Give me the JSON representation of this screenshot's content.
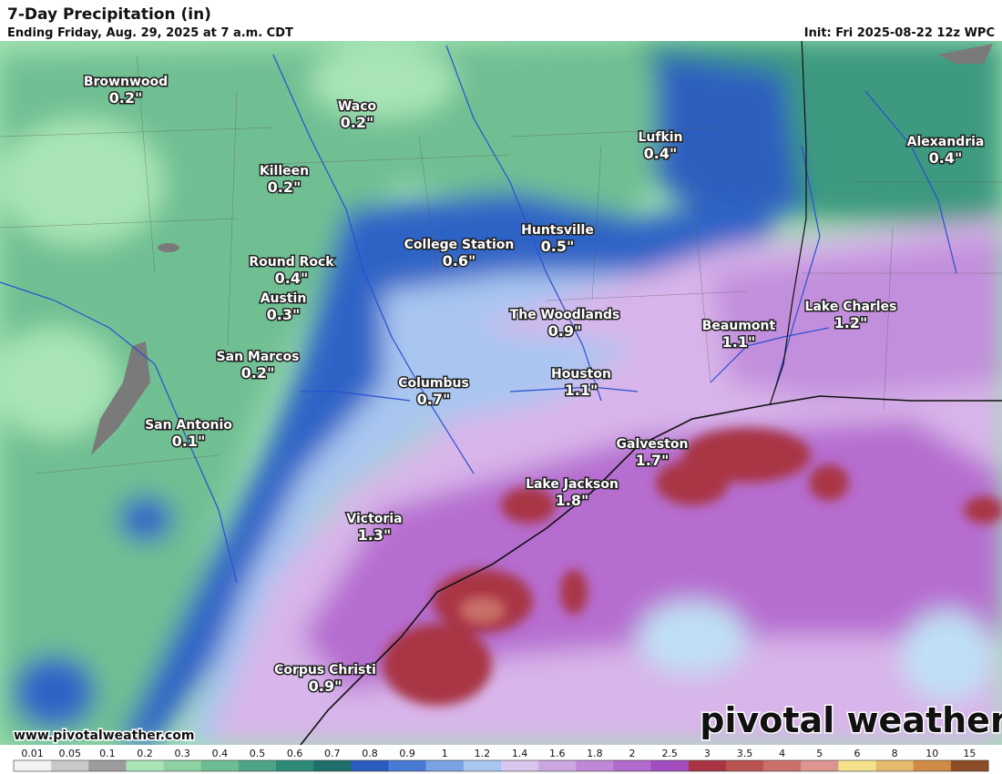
{
  "header": {
    "title": "7-Day Precipitation (in)",
    "subtitle": "Ending Friday, Aug. 29, 2025 at 7 a.m. CDT",
    "init": "Init: Fri 2025-08-22 12z WPC"
  },
  "cities": [
    {
      "name": "Brownwood",
      "amount": "0.2\""
    },
    {
      "name": "Waco",
      "amount": "0.2\""
    },
    {
      "name": "Killeen",
      "amount": "0.2\""
    },
    {
      "name": "Lufkin",
      "amount": "0.4\""
    },
    {
      "name": "Alexandria",
      "amount": "0.4\""
    },
    {
      "name": "College Station",
      "amount": "0.6\""
    },
    {
      "name": "Huntsville",
      "amount": "0.5\""
    },
    {
      "name": "Round Rock",
      "amount": "0.4\""
    },
    {
      "name": "Austin",
      "amount": "0.3\""
    },
    {
      "name": "The Woodlands",
      "amount": "0.9\""
    },
    {
      "name": "Beaumont",
      "amount": "1.1\""
    },
    {
      "name": "Lake Charles",
      "amount": "1.2\""
    },
    {
      "name": "San Marcos",
      "amount": "0.2\""
    },
    {
      "name": "Columbus",
      "amount": "0.7\""
    },
    {
      "name": "Houston",
      "amount": "1.1\""
    },
    {
      "name": "San Antonio",
      "amount": "0.1\""
    },
    {
      "name": "Galveston",
      "amount": "1.7\""
    },
    {
      "name": "Lake Jackson",
      "amount": "1.8\""
    },
    {
      "name": "Victoria",
      "amount": "1.3\""
    },
    {
      "name": "Corpus Christi",
      "amount": "0.9\""
    }
  ],
  "website": "www.pivotalweather.com",
  "logo": "pivotal weather",
  "colorbar": {
    "labels": [
      "0.01",
      "0.05",
      "0.1",
      "0.2",
      "0.3",
      "0.4",
      "0.5",
      "0.6",
      "0.7",
      "0.8",
      "0.9",
      "1",
      "1.2",
      "1.4",
      "1.6",
      "1.8",
      "2",
      "2.5",
      "3",
      "3.5",
      "4",
      "5",
      "6",
      "8",
      "10",
      "15"
    ],
    "colors": [
      "#f2f2f2",
      "#c9c9c9",
      "#9c9c9c",
      "#a9e5b6",
      "#8ed2a3",
      "#6cbd91",
      "#4ea486",
      "#2d8978",
      "#1f6e6b",
      "#2a5cbe",
      "#4a7bd4",
      "#7aa2e4",
      "#a9c6f0",
      "#d9c6ec",
      "#cba6e2",
      "#be88d8",
      "#b06acc",
      "#a24dbf",
      "#a93544",
      "#b9534f",
      "#c97069",
      "#dc9590",
      "#f4e28d",
      "#e4bb6c",
      "#cf8a45",
      "#8c4e26"
    ]
  }
}
